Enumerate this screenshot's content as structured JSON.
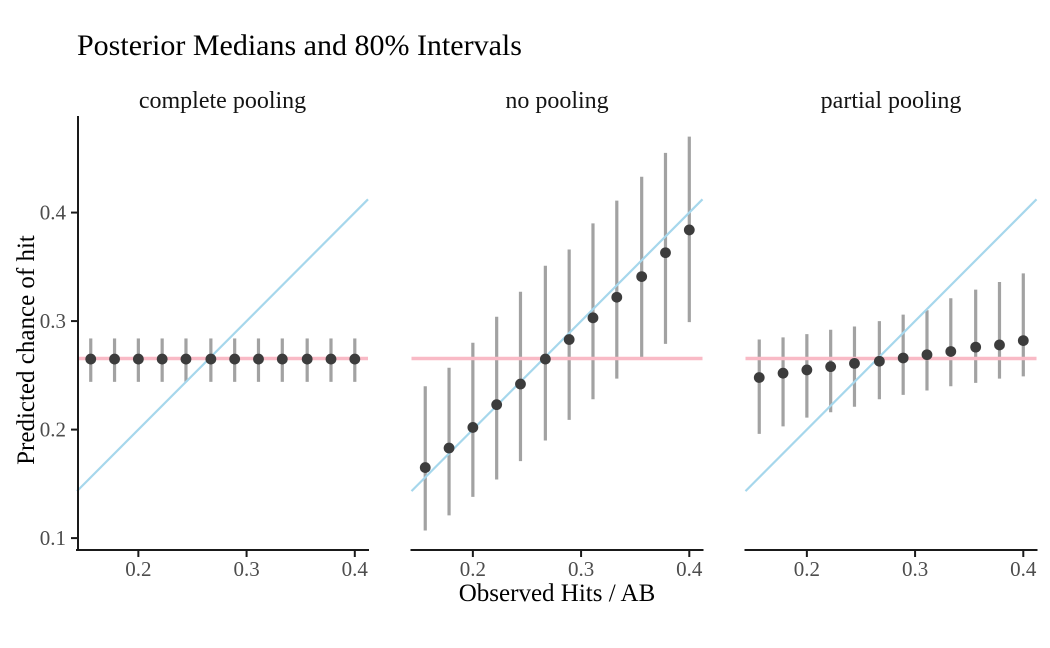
{
  "chart_data": {
    "type": "scatter",
    "title": "Posterior Medians and 80% Intervals",
    "xlabel": "Observed Hits / AB",
    "ylabel": "Predicted chance of hit",
    "grid": "off",
    "legend": "none",
    "x_ticks": [
      0.2,
      0.3,
      0.4
    ],
    "y_ticks": [
      0.1,
      0.2,
      0.3,
      0.4
    ],
    "x_domain": [
      0.1433,
      0.4122
    ],
    "y_domain": [
      0.0895,
      0.489
    ],
    "x": [
      0.156,
      0.178,
      0.2,
      0.222,
      0.244,
      0.267,
      0.289,
      0.311,
      0.333,
      0.356,
      0.378,
      0.4
    ],
    "facets": [
      {
        "label": "complete pooling",
        "medians": [
          0.265,
          0.265,
          0.265,
          0.265,
          0.265,
          0.265,
          0.265,
          0.265,
          0.265,
          0.265,
          0.265,
          0.265
        ],
        "lower": [
          0.244,
          0.244,
          0.244,
          0.244,
          0.244,
          0.244,
          0.244,
          0.244,
          0.244,
          0.244,
          0.244,
          0.244
        ],
        "upper": [
          0.284,
          0.284,
          0.284,
          0.284,
          0.284,
          0.284,
          0.284,
          0.284,
          0.284,
          0.284,
          0.284,
          0.284
        ]
      },
      {
        "label": "no pooling",
        "medians": [
          0.165,
          0.183,
          0.202,
          0.223,
          0.242,
          0.265,
          0.283,
          0.303,
          0.322,
          0.341,
          0.363,
          0.384
        ],
        "lower": [
          0.107,
          0.121,
          0.138,
          0.154,
          0.171,
          0.19,
          0.209,
          0.228,
          0.247,
          0.266,
          0.279,
          0.299
        ],
        "upper": [
          0.24,
          0.257,
          0.28,
          0.304,
          0.327,
          0.351,
          0.366,
          0.39,
          0.411,
          0.433,
          0.455,
          0.47
        ]
      },
      {
        "label": "partial pooling",
        "medians": [
          0.248,
          0.252,
          0.255,
          0.258,
          0.261,
          0.263,
          0.266,
          0.269,
          0.272,
          0.276,
          0.278,
          0.282
        ],
        "lower": [
          0.196,
          0.203,
          0.211,
          0.216,
          0.221,
          0.228,
          0.232,
          0.236,
          0.24,
          0.243,
          0.247,
          0.249
        ],
        "upper": [
          0.283,
          0.285,
          0.288,
          0.292,
          0.295,
          0.3,
          0.306,
          0.31,
          0.321,
          0.329,
          0.336,
          0.344
        ]
      }
    ],
    "reference_lines": {
      "identity_line": {
        "type": "abline",
        "slope": 1,
        "intercept": 0,
        "color": "#a6d7ec"
      },
      "pooled_estimate_line": {
        "type": "hline",
        "y": 0.2655,
        "color": "#f9bac6"
      }
    },
    "colors": {
      "point": "#3c3c3c",
      "interval": "#a2a2a2",
      "axis": "#1a1a1a",
      "tick_label": "#4d4d4d",
      "background": "#ffffff"
    }
  }
}
